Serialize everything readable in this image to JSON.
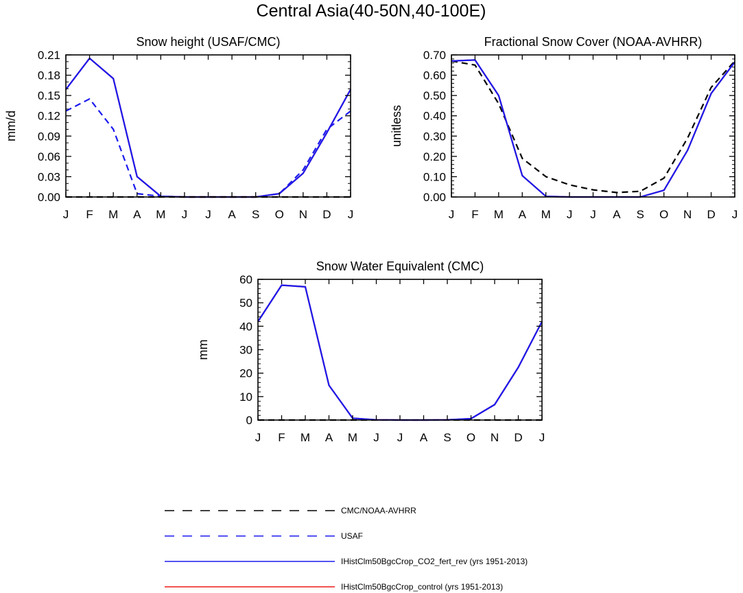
{
  "figure_title": "Central Asia(40-50N,40-100E)",
  "colors": {
    "obs": "#000000",
    "usaf": "#1a1aee",
    "model_fert": "#1a1aee",
    "model_control": "#ee1a1a"
  },
  "chart_data": [
    {
      "type": "line",
      "title": "Snow height (USAF/CMC)",
      "xlabel": "",
      "ylabel": "mm/d",
      "x_ticklabels": [
        "J",
        "F",
        "M",
        "A",
        "M",
        "J",
        "J",
        "A",
        "S",
        "O",
        "N",
        "D",
        "J"
      ],
      "ylim": [
        0,
        0.21
      ],
      "y_ticks": [
        "0.00",
        "0.03",
        "0.06",
        "0.09",
        "0.12",
        "0.15",
        "0.18",
        "0.21"
      ],
      "series": [
        {
          "name": "USAF",
          "style": "dashed",
          "color": "#1a1aee",
          "values": [
            0.127,
            0.145,
            0.1,
            0.005,
            0.001,
            0.0,
            0.0,
            0.0,
            0.0,
            0.005,
            0.04,
            0.1,
            0.127
          ]
        },
        {
          "name": "IHistClm50BgcCrop_control (yrs 1951-2013)",
          "style": "solid",
          "color": "#ee1a1a",
          "values": [
            0.159,
            0.205,
            0.175,
            0.03,
            0.001,
            0.0,
            0.0,
            0.0,
            0.0,
            0.005,
            0.035,
            0.095,
            0.159
          ]
        },
        {
          "name": "IHistClm50BgcCrop_CO2_fert_rev (yrs 1951-2013)",
          "style": "solid",
          "color": "#1a1aee",
          "values": [
            0.159,
            0.205,
            0.175,
            0.03,
            0.001,
            0.0,
            0.0,
            0.0,
            0.0,
            0.005,
            0.035,
            0.095,
            0.159
          ]
        },
        {
          "name": "CMC/NOAA-AVHRR",
          "style": "dashed",
          "color": "#000000",
          "values": [
            0.0,
            0.0,
            0.0,
            0.0,
            0.0,
            0.0,
            0.0,
            0.0,
            0.0,
            0.0,
            0.0,
            0.0,
            0.0
          ]
        }
      ]
    },
    {
      "type": "line",
      "title": "Fractional Snow Cover (NOAA-AVHRR)",
      "xlabel": "",
      "ylabel": "unitless",
      "x_ticklabels": [
        "J",
        "F",
        "M",
        "A",
        "M",
        "J",
        "J",
        "A",
        "S",
        "O",
        "N",
        "D",
        "J"
      ],
      "ylim": [
        0,
        0.7
      ],
      "y_ticks": [
        "0.00",
        "0.10",
        "0.20",
        "0.30",
        "0.40",
        "0.50",
        "0.60",
        "0.70"
      ],
      "series": [
        {
          "name": "CMC/NOAA-AVHRR",
          "style": "dashed",
          "color": "#000000",
          "values": [
            0.67,
            0.65,
            0.46,
            0.19,
            0.1,
            0.06,
            0.035,
            0.022,
            0.028,
            0.093,
            0.29,
            0.54,
            0.67
          ]
        },
        {
          "name": "IHistClm50BgcCrop_control (yrs 1951-2013)",
          "style": "solid",
          "color": "#ee1a1a",
          "values": [
            0.67,
            0.675,
            0.5,
            0.105,
            0.003,
            0.0,
            0.0,
            0.0,
            0.0,
            0.033,
            0.23,
            0.51,
            0.665
          ]
        },
        {
          "name": "IHistClm50BgcCrop_CO2_fert_rev (yrs 1951-2013)",
          "style": "solid",
          "color": "#1a1aee",
          "values": [
            0.67,
            0.675,
            0.5,
            0.105,
            0.003,
            0.0,
            0.0,
            0.0,
            0.0,
            0.033,
            0.23,
            0.51,
            0.665
          ]
        }
      ]
    },
    {
      "type": "line",
      "title": "Snow Water Equivalent (CMC)",
      "xlabel": "",
      "ylabel": "mm",
      "x_ticklabels": [
        "J",
        "F",
        "M",
        "A",
        "M",
        "J",
        "J",
        "A",
        "S",
        "O",
        "N",
        "D",
        "J"
      ],
      "ylim": [
        0,
        60
      ],
      "y_ticks": [
        "0",
        "10",
        "20",
        "30",
        "40",
        "50",
        "60"
      ],
      "series": [
        {
          "name": "CMC/NOAA-AVHRR",
          "style": "dashed",
          "color": "#000000",
          "values": [
            0,
            0,
            0,
            0,
            0,
            0,
            0,
            0,
            0,
            0,
            0,
            0,
            0
          ]
        },
        {
          "name": "IHistClm50BgcCrop_control (yrs 1951-2013)",
          "style": "solid",
          "color": "#ee1a1a",
          "values": [
            42,
            57.5,
            56.8,
            14.8,
            0.8,
            0.1,
            0.0,
            0.0,
            0.1,
            0.6,
            6.6,
            22.5,
            42
          ]
        },
        {
          "name": "IHistClm50BgcCrop_CO2_fert_rev (yrs 1951-2013)",
          "style": "solid",
          "color": "#1a1aee",
          "values": [
            42,
            57.5,
            56.8,
            14.8,
            0.8,
            0.1,
            0.0,
            0.0,
            0.1,
            0.6,
            6.6,
            22.5,
            42
          ]
        }
      ]
    }
  ],
  "legend": [
    {
      "label": "CMC/NOAA-AVHRR",
      "style": "dashed",
      "color": "#000000"
    },
    {
      "label": "USAF",
      "style": "dashed",
      "color": "#1a1aee"
    },
    {
      "label": "IHistClm50BgcCrop_CO2_fert_rev (yrs 1951-2013)",
      "style": "solid",
      "color": "#1a1aee"
    },
    {
      "label": "IHistClm50BgcCrop_control (yrs 1951-2013)",
      "style": "solid",
      "color": "#ee1a1a"
    }
  ]
}
